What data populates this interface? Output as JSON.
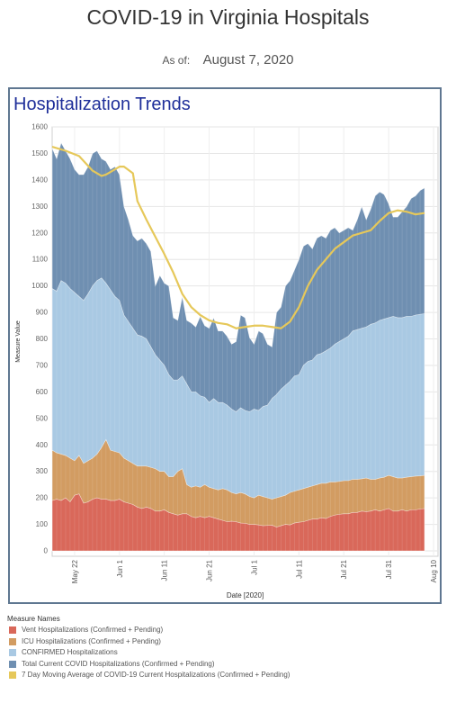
{
  "header": {
    "title": "COVID-19 in Virginia Hospitals",
    "as_of_label": "As of:",
    "as_of_date": "August 7, 2020"
  },
  "panel": {
    "title": "Hospitalization Trends"
  },
  "colors": {
    "vent": "#d9685a",
    "icu": "#d29c62",
    "confirmed": "#a9c9e3",
    "total": "#6f8fb1",
    "moving_avg": "#e6c85a"
  },
  "chart_data": {
    "type": "area",
    "title": "Hospitalization Trends",
    "xlabel": "Date [2020]",
    "ylabel": "Measure Value",
    "ylim": [
      0,
      1600
    ],
    "yticks": [
      0,
      100,
      200,
      300,
      400,
      500,
      600,
      700,
      800,
      900,
      1000,
      1100,
      1200,
      1300,
      1400,
      1500,
      1600
    ],
    "x_tick_labels": [
      "May 22",
      "Jun 1",
      "Jun 11",
      "Jun 21",
      "Jul 1",
      "Jul 11",
      "Jul 21",
      "Jul 31",
      "Aug 10"
    ],
    "x_tick_days": [
      142,
      152,
      162,
      172,
      182,
      192,
      202,
      212,
      222
    ],
    "x_start_day": 137,
    "x_end_day": 223,
    "grid": true,
    "legend_title": "Measure Names",
    "legend_position": "bottom",
    "series": [
      {
        "name": "Vent Hospitalizations (Confirmed + Pending)",
        "color": "#d9685a",
        "x": [
          137,
          138,
          139,
          140,
          141,
          142,
          143,
          144,
          145,
          146,
          147,
          148,
          149,
          150,
          151,
          152,
          153,
          154,
          155,
          156,
          157,
          158,
          159,
          160,
          161,
          162,
          163,
          164,
          165,
          166,
          167,
          168,
          169,
          170,
          171,
          172,
          173,
          174,
          175,
          176,
          177,
          178,
          179,
          180,
          181,
          182,
          183,
          184,
          185,
          186,
          187,
          188,
          189,
          190,
          191,
          192,
          193,
          194,
          195,
          196,
          197,
          198,
          199,
          200,
          201,
          202,
          203,
          204,
          205,
          206,
          207,
          208,
          209,
          210,
          211,
          212,
          213,
          214,
          215,
          216,
          217,
          218,
          219,
          220
        ],
        "values": [
          190,
          195,
          190,
          200,
          185,
          210,
          215,
          180,
          185,
          195,
          200,
          195,
          195,
          190,
          190,
          195,
          185,
          180,
          175,
          165,
          160,
          165,
          160,
          150,
          150,
          155,
          145,
          140,
          135,
          140,
          140,
          130,
          125,
          130,
          125,
          130,
          125,
          120,
          115,
          110,
          112,
          110,
          105,
          104,
          100,
          100,
          98,
          95,
          96,
          97,
          90,
          95,
          100,
          98,
          105,
          108,
          110,
          115,
          120,
          120,
          125,
          122,
          130,
          135,
          138,
          140,
          140,
          145,
          145,
          150,
          148,
          150,
          155,
          150,
          155,
          160,
          150,
          150,
          155,
          150,
          155,
          155,
          158,
          160
        ]
      },
      {
        "name": "ICU Hospitalizations (Confirmed + Pending)",
        "color": "#d29c62",
        "x": [
          137,
          138,
          139,
          140,
          141,
          142,
          143,
          144,
          145,
          146,
          147,
          148,
          149,
          150,
          151,
          152,
          153,
          154,
          155,
          156,
          157,
          158,
          159,
          160,
          161,
          162,
          163,
          164,
          165,
          166,
          167,
          168,
          169,
          170,
          171,
          172,
          173,
          174,
          175,
          176,
          177,
          178,
          179,
          180,
          181,
          182,
          183,
          184,
          185,
          186,
          187,
          188,
          189,
          190,
          191,
          192,
          193,
          194,
          195,
          196,
          197,
          198,
          199,
          200,
          201,
          202,
          203,
          204,
          205,
          206,
          207,
          208,
          209,
          210,
          211,
          212,
          213,
          214,
          215,
          216,
          217,
          218,
          219,
          220
        ],
        "values": [
          380,
          370,
          365,
          360,
          350,
          340,
          360,
          330,
          340,
          350,
          365,
          390,
          420,
          380,
          375,
          370,
          350,
          340,
          330,
          320,
          320,
          320,
          315,
          310,
          300,
          300,
          280,
          280,
          300,
          310,
          250,
          240,
          245,
          240,
          250,
          240,
          235,
          230,
          235,
          230,
          220,
          215,
          220,
          215,
          205,
          200,
          210,
          205,
          200,
          195,
          200,
          205,
          210,
          220,
          225,
          230,
          235,
          240,
          245,
          250,
          255,
          255,
          260,
          260,
          262,
          265,
          265,
          270,
          270,
          272,
          275,
          270,
          270,
          275,
          278,
          285,
          280,
          275,
          275,
          278,
          280,
          282,
          283,
          285
        ]
      },
      {
        "name": "CONFIRMED Hospitalizations",
        "color": "#a9c9e3",
        "x": [
          137,
          138,
          139,
          140,
          141,
          142,
          143,
          144,
          145,
          146,
          147,
          148,
          149,
          150,
          151,
          152,
          153,
          154,
          155,
          156,
          157,
          158,
          159,
          160,
          161,
          162,
          163,
          164,
          165,
          166,
          167,
          168,
          169,
          170,
          171,
          172,
          173,
          174,
          175,
          176,
          177,
          178,
          179,
          180,
          181,
          182,
          183,
          184,
          185,
          186,
          187,
          188,
          189,
          190,
          191,
          192,
          193,
          194,
          195,
          196,
          197,
          198,
          199,
          200,
          201,
          202,
          203,
          204,
          205,
          206,
          207,
          208,
          209,
          210,
          211,
          212,
          213,
          214,
          215,
          216,
          217,
          218,
          219,
          220
        ],
        "values": [
          990,
          980,
          1020,
          1010,
          990,
          975,
          960,
          945,
          970,
          1000,
          1020,
          1030,
          1010,
          985,
          960,
          945,
          890,
          865,
          840,
          815,
          810,
          800,
          770,
          740,
          720,
          700,
          665,
          645,
          645,
          660,
          630,
          600,
          600,
          585,
          580,
          560,
          575,
          560,
          560,
          550,
          535,
          525,
          540,
          530,
          525,
          535,
          530,
          545,
          550,
          575,
          590,
          610,
          625,
          640,
          660,
          665,
          700,
          715,
          720,
          740,
          745,
          755,
          765,
          780,
          790,
          800,
          810,
          830,
          835,
          840,
          845,
          855,
          860,
          870,
          875,
          880,
          885,
          880,
          880,
          885,
          885,
          890,
          893,
          895
        ]
      },
      {
        "name": "Total Current COVID Hospitalizations (Confirmed + Pending)",
        "color": "#6f8fb1",
        "x": [
          137,
          138,
          139,
          140,
          141,
          142,
          143,
          144,
          145,
          146,
          147,
          148,
          149,
          150,
          151,
          152,
          153,
          154,
          155,
          156,
          157,
          158,
          159,
          160,
          161,
          162,
          163,
          164,
          165,
          166,
          167,
          168,
          169,
          170,
          171,
          172,
          173,
          174,
          175,
          176,
          177,
          178,
          179,
          180,
          181,
          182,
          183,
          184,
          185,
          186,
          187,
          188,
          189,
          190,
          191,
          192,
          193,
          194,
          195,
          196,
          197,
          198,
          199,
          200,
          201,
          202,
          203,
          204,
          205,
          206,
          207,
          208,
          209,
          210,
          211,
          212,
          213,
          214,
          215,
          216,
          217,
          218,
          219,
          220
        ],
        "values": [
          1520,
          1480,
          1540,
          1510,
          1480,
          1440,
          1420,
          1420,
          1450,
          1500,
          1510,
          1480,
          1470,
          1440,
          1450,
          1420,
          1300,
          1250,
          1190,
          1170,
          1180,
          1160,
          1130,
          1000,
          1040,
          1010,
          1000,
          880,
          870,
          960,
          870,
          860,
          845,
          885,
          850,
          840,
          880,
          830,
          830,
          810,
          780,
          790,
          890,
          880,
          805,
          780,
          830,
          820,
          780,
          770,
          900,
          920,
          1000,
          1020,
          1060,
          1100,
          1150,
          1160,
          1140,
          1180,
          1190,
          1180,
          1210,
          1220,
          1200,
          1210,
          1220,
          1210,
          1250,
          1300,
          1250,
          1290,
          1340,
          1355,
          1345,
          1310,
          1260,
          1260,
          1280,
          1300,
          1330,
          1340,
          1360,
          1370
        ]
      },
      {
        "name": "7 Day Moving Average of COVID-19 Current Hospitalizations (Confirmed + Pending)",
        "color": "#e6c85a",
        "type": "line",
        "x": [
          137,
          140,
          143,
          146,
          148,
          149,
          150,
          152,
          153,
          155,
          156,
          158,
          160,
          162,
          164,
          166,
          168,
          170,
          172,
          174,
          176,
          178,
          180,
          182,
          184,
          186,
          188,
          190,
          192,
          194,
          196,
          198,
          200,
          202,
          204,
          206,
          208,
          210,
          212,
          214,
          216,
          218,
          220
        ],
        "values": [
          1525,
          1510,
          1490,
          1435,
          1415,
          1420,
          1430,
          1450,
          1450,
          1425,
          1320,
          1250,
          1185,
          1120,
          1050,
          970,
          920,
          890,
          870,
          860,
          855,
          840,
          845,
          850,
          850,
          845,
          840,
          865,
          920,
          1000,
          1060,
          1100,
          1140,
          1165,
          1190,
          1200,
          1210,
          1245,
          1275,
          1285,
          1280,
          1270,
          1275
        ]
      }
    ]
  }
}
